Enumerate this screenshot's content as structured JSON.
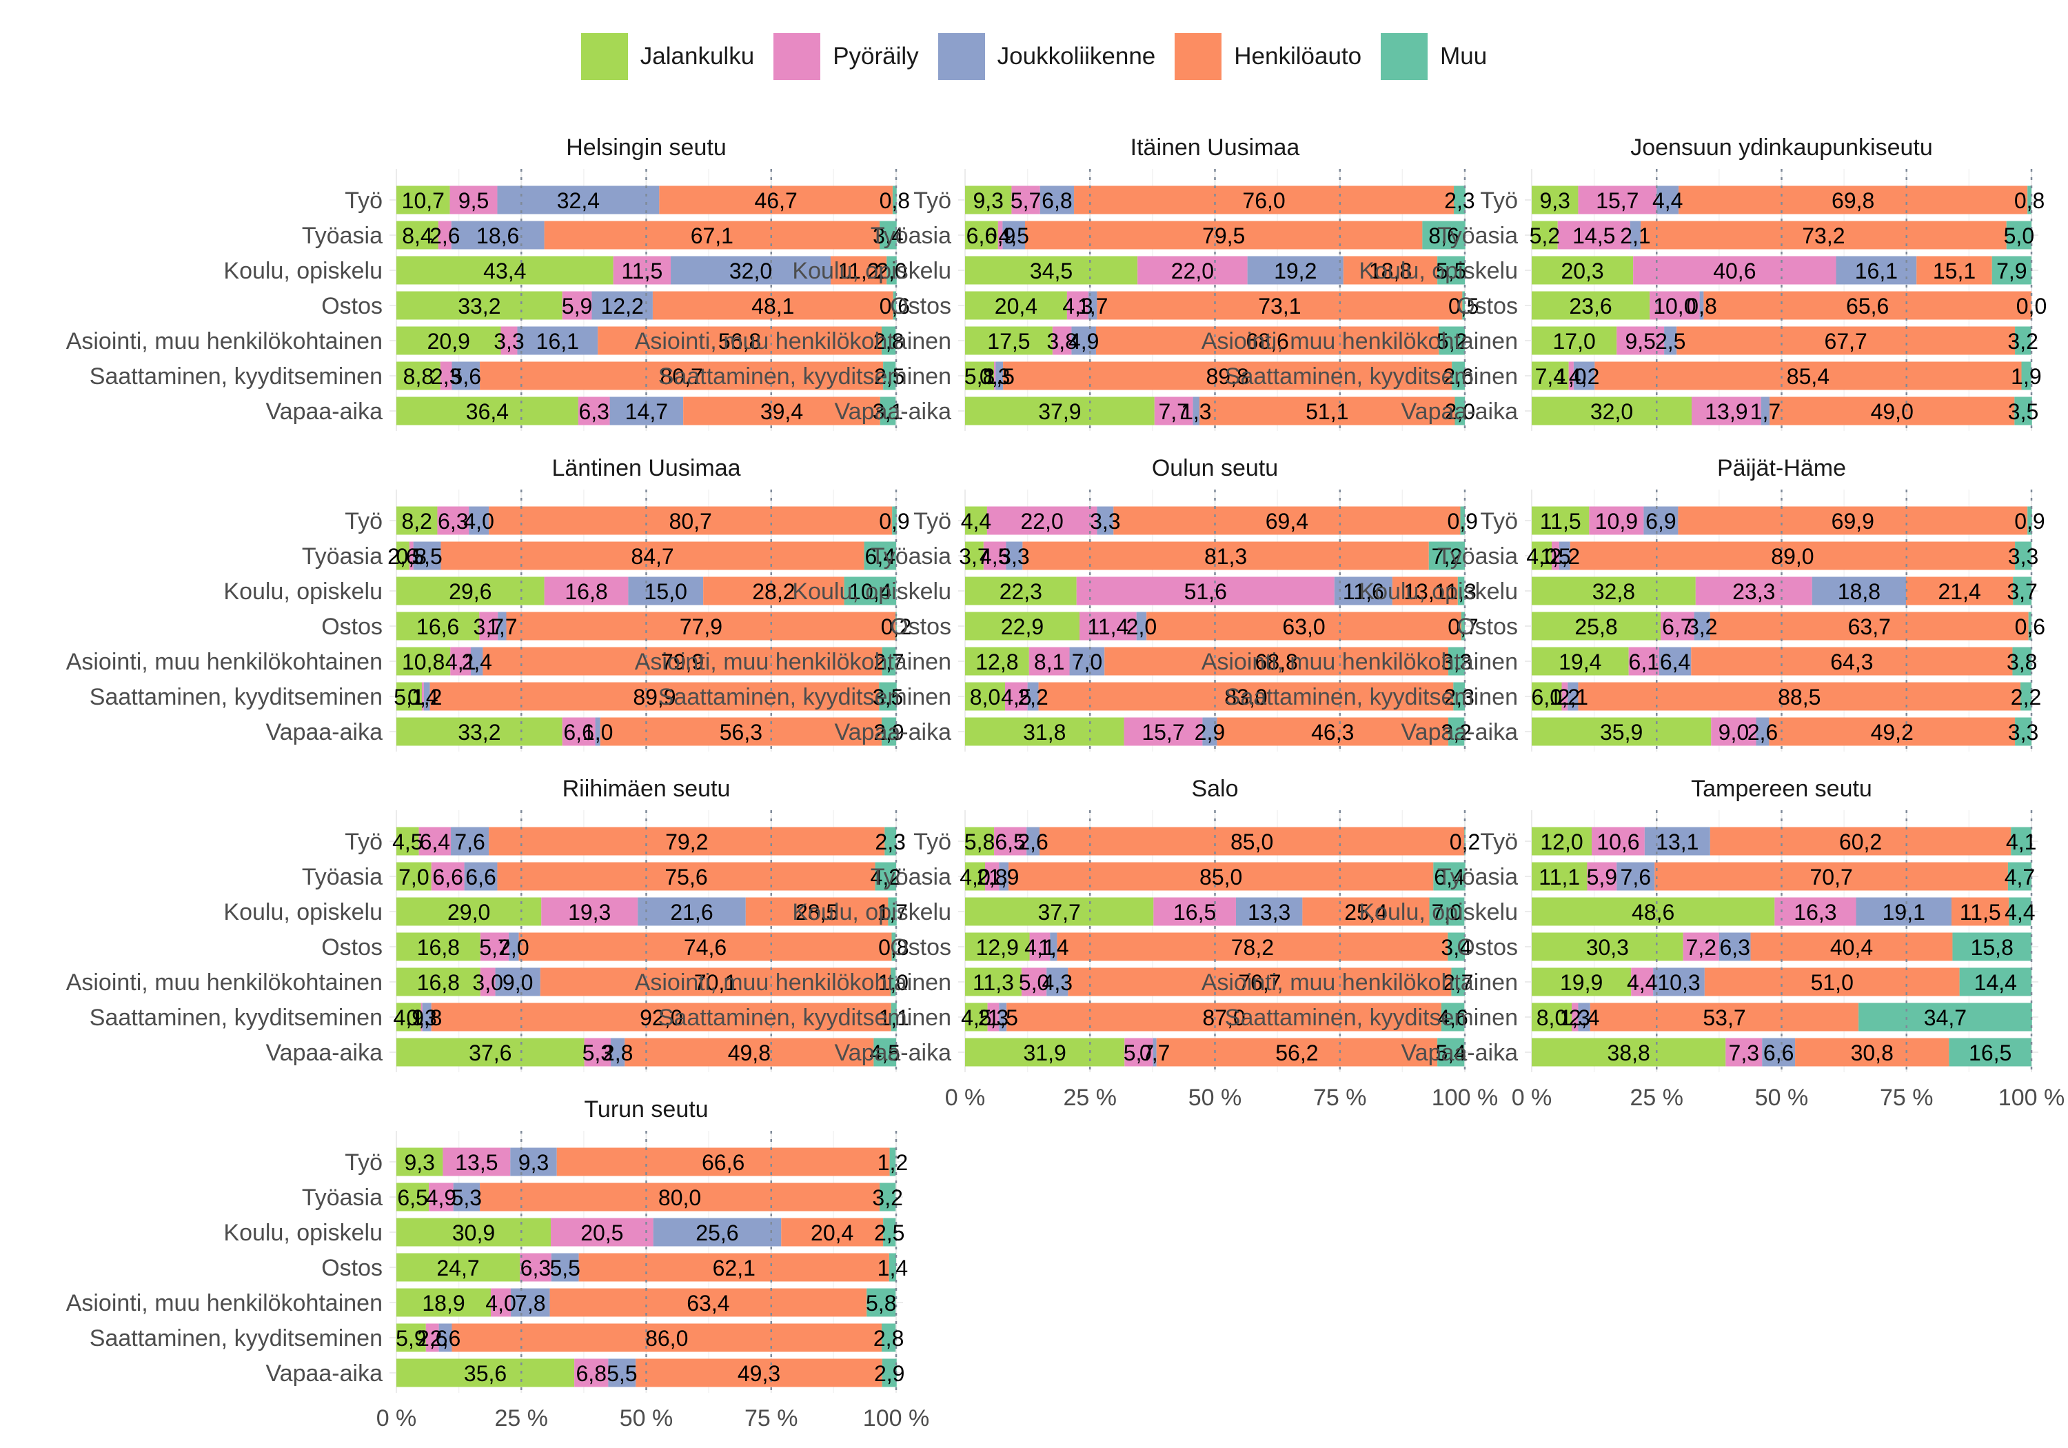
{
  "legend": [
    {
      "label": "Jalankulku",
      "color": "#A6D854"
    },
    {
      "label": "Pyöräily",
      "color": "#E78AC3"
    },
    {
      "label": "Joukkoliikenne",
      "color": "#8DA0CB"
    },
    {
      "label": "Henkilöauto",
      "color": "#FC8D62"
    },
    {
      "label": "Muu",
      "color": "#66C2A5"
    }
  ],
  "chart_data": {
    "type": "bar",
    "orientation": "horizontal",
    "stacked": "percent",
    "categories": [
      "Työ",
      "Työasia",
      "Koulu, opiskelu",
      "Ostos",
      "Asiointi, muu henkilökohtainen",
      "Saattaminen, kyyditseminen",
      "Vapaa-aika"
    ],
    "series_names": [
      "Jalankulku",
      "Pyöräily",
      "Joukkoliikenne",
      "Henkilöauto",
      "Muu"
    ],
    "xlim": [
      0,
      100
    ],
    "x_ticks": [
      "0 %",
      "25 %",
      "50 %",
      "75 %",
      "100 %"
    ],
    "grid": true,
    "legend_position": "top",
    "panels": [
      {
        "title": "Helsingin seutu",
        "values": [
          [
            "10,7",
            "9,5",
            "32,4",
            "46,7",
            "0,8"
          ],
          [
            "8,4",
            "2,6",
            "18,6",
            "67,1",
            "3,4"
          ],
          [
            "43,4",
            "11,5",
            "32,0",
            "11,2",
            "2,0"
          ],
          [
            "33,2",
            "5,9",
            "12,2",
            "48,1",
            "0,6"
          ],
          [
            "20,9",
            "3,3",
            "16,1",
            "56,8",
            "2,8"
          ],
          [
            "8,8",
            "2,3",
            "5,6",
            "80,7",
            "2,5"
          ],
          [
            "36,4",
            "6,3",
            "14,7",
            "39,4",
            "3,1"
          ]
        ]
      },
      {
        "title": "Itäinen Uusimaa",
        "values": [
          [
            "9,3",
            "5,7",
            "6,8",
            "76,0",
            "2,3"
          ],
          [
            "6,6",
            "0,9",
            "4,5",
            "79,5",
            "8,6"
          ],
          [
            "34,5",
            "22,0",
            "19,2",
            "18,8",
            "5,5"
          ],
          [
            "20,4",
            "4,3",
            "1,7",
            "73,1",
            "0,5"
          ],
          [
            "17,5",
            "3,8",
            "4,9",
            "68,6",
            "5,2"
          ],
          [
            "5,8",
            "0,3",
            "1,5",
            "89,8",
            "2,6"
          ],
          [
            "37,9",
            "7,7",
            "1,3",
            "51,1",
            "2,0"
          ]
        ]
      },
      {
        "title": "Joensuun ydinkaupunkiseutu",
        "values": [
          [
            "9,3",
            "15,7",
            "4,4",
            "69,8",
            "0,8"
          ],
          [
            "5,2",
            "14,5",
            "2,1",
            "73,2",
            "5,0"
          ],
          [
            "20,3",
            "40,6",
            "16,1",
            "15,1",
            "7,9"
          ],
          [
            "23,6",
            "10,0",
            "0,8",
            "65,6",
            "0,0"
          ],
          [
            "17,0",
            "9,5",
            "2,5",
            "67,7",
            "3,2"
          ],
          [
            "7,4",
            "1,0",
            "4,2",
            "85,4",
            "1,9"
          ],
          [
            "32,0",
            "13,9",
            "1,7",
            "49,0",
            "3,5"
          ]
        ]
      },
      {
        "title": "Läntinen Uusimaa",
        "values": [
          [
            "8,2",
            "6,3",
            "4,0",
            "80,7",
            "0,9"
          ],
          [
            "2,6",
            "0,8",
            "5,5",
            "84,7",
            "6,4"
          ],
          [
            "29,6",
            "16,8",
            "15,0",
            "28,2",
            "10,4"
          ],
          [
            "16,6",
            "3,7",
            "1,7",
            "77,9",
            "0,2"
          ],
          [
            "10,8",
            "4,1",
            "2,4",
            "79,9",
            "2,7"
          ],
          [
            "5,1",
            "0,4",
            "1,2",
            "89,9",
            "3,5"
          ],
          [
            "33,2",
            "6,6",
            "1,0",
            "56,3",
            "2,9"
          ]
        ]
      },
      {
        "title": "Oulun seutu",
        "values": [
          [
            "4,4",
            "22,0",
            "3,3",
            "69,4",
            "0,9"
          ],
          [
            "3,7",
            "4,5",
            "3,3",
            "81,3",
            "7,2"
          ],
          [
            "22,3",
            "51,6",
            "11,6",
            "13,1",
            "1,3"
          ],
          [
            "22,9",
            "11,4",
            "2,0",
            "63,0",
            "0,7"
          ],
          [
            "12,8",
            "8,1",
            "7,0",
            "68,8",
            "3,3"
          ],
          [
            "8,0",
            "4,5",
            "2,2",
            "83,0",
            "2,3"
          ],
          [
            "31,8",
            "15,7",
            "2,9",
            "46,3",
            "3,2"
          ]
        ]
      },
      {
        "title": "Päijät-Häme",
        "values": [
          [
            "11,5",
            "10,9",
            "6,9",
            "69,9",
            "0,9"
          ],
          [
            "4,0",
            "1,5",
            "2,2",
            "89,0",
            "3,3"
          ],
          [
            "32,8",
            "23,3",
            "18,8",
            "21,4",
            "3,7"
          ],
          [
            "25,8",
            "6,7",
            "3,2",
            "63,7",
            "0,6"
          ],
          [
            "19,4",
            "6,1",
            "6,4",
            "64,3",
            "3,8"
          ],
          [
            "6,0",
            "1,2",
            "2,1",
            "88,5",
            "2,2"
          ],
          [
            "35,9",
            "9,0",
            "2,6",
            "49,2",
            "3,3"
          ]
        ]
      },
      {
        "title": "Riihimäen seutu",
        "values": [
          [
            "4,5",
            "6,4",
            "7,6",
            "79,2",
            "2,3"
          ],
          [
            "7,0",
            "6,6",
            "6,6",
            "75,6",
            "4,2"
          ],
          [
            "29,0",
            "19,3",
            "21,6",
            "28,5",
            "1,7"
          ],
          [
            "16,8",
            "5,7",
            "2,0",
            "74,6",
            "0,8"
          ],
          [
            "16,8",
            "3,0",
            "9,0",
            "70,1",
            "1,0"
          ],
          [
            "4,9",
            "0,3",
            "1,8",
            "92,0",
            "1,1"
          ],
          [
            "37,6",
            "5,3",
            "2,8",
            "49,8",
            "4,5"
          ]
        ]
      },
      {
        "title": "Salo",
        "values": [
          [
            "5,8",
            "6,5",
            "2,6",
            "85,0",
            "0,2"
          ],
          [
            "4,0",
            "2,8",
            "1,9",
            "85,0",
            "6,4"
          ],
          [
            "37,7",
            "16,5",
            "13,3",
            "25,4",
            "7,0"
          ],
          [
            "12,9",
            "4,1",
            "1,4",
            "78,2",
            "3,4"
          ],
          [
            "11,3",
            "5,0",
            "4,3",
            "76,7",
            "2,7"
          ],
          [
            "4,5",
            "2,3",
            "1,5",
            "87,0",
            "4,6"
          ],
          [
            "31,9",
            "5,7",
            "0,7",
            "56,2",
            "5,4"
          ]
        ]
      },
      {
        "title": "Tampereen seutu",
        "values": [
          [
            "12,0",
            "10,6",
            "13,1",
            "60,2",
            "4,1"
          ],
          [
            "11,1",
            "5,9",
            "7,6",
            "70,7",
            "4,7"
          ],
          [
            "48,6",
            "16,3",
            "19,1",
            "11,5",
            "4,4"
          ],
          [
            "30,3",
            "7,2",
            "6,3",
            "40,4",
            "15,8"
          ],
          [
            "19,9",
            "4,4",
            "10,3",
            "51,0",
            "14,4"
          ],
          [
            "8,0",
            "1,3",
            "2,4",
            "53,7",
            "34,7"
          ],
          [
            "38,8",
            "7,3",
            "6,6",
            "30,8",
            "16,5"
          ]
        ]
      },
      {
        "title": "Turun seutu",
        "values": [
          [
            "9,3",
            "13,5",
            "9,3",
            "66,6",
            "1,2"
          ],
          [
            "6,5",
            "4,9",
            "5,3",
            "80,0",
            "3,2"
          ],
          [
            "30,9",
            "20,5",
            "25,6",
            "20,4",
            "2,5"
          ],
          [
            "24,7",
            "6,3",
            "5,5",
            "62,1",
            "1,4"
          ],
          [
            "18,9",
            "4,0",
            "7,8",
            "63,4",
            "5,8"
          ],
          [
            "5,9",
            "2,6",
            "2,6",
            "86,0",
            "2,8"
          ],
          [
            "35,6",
            "6,8",
            "5,5",
            "49,3",
            "2,9"
          ]
        ]
      }
    ]
  }
}
